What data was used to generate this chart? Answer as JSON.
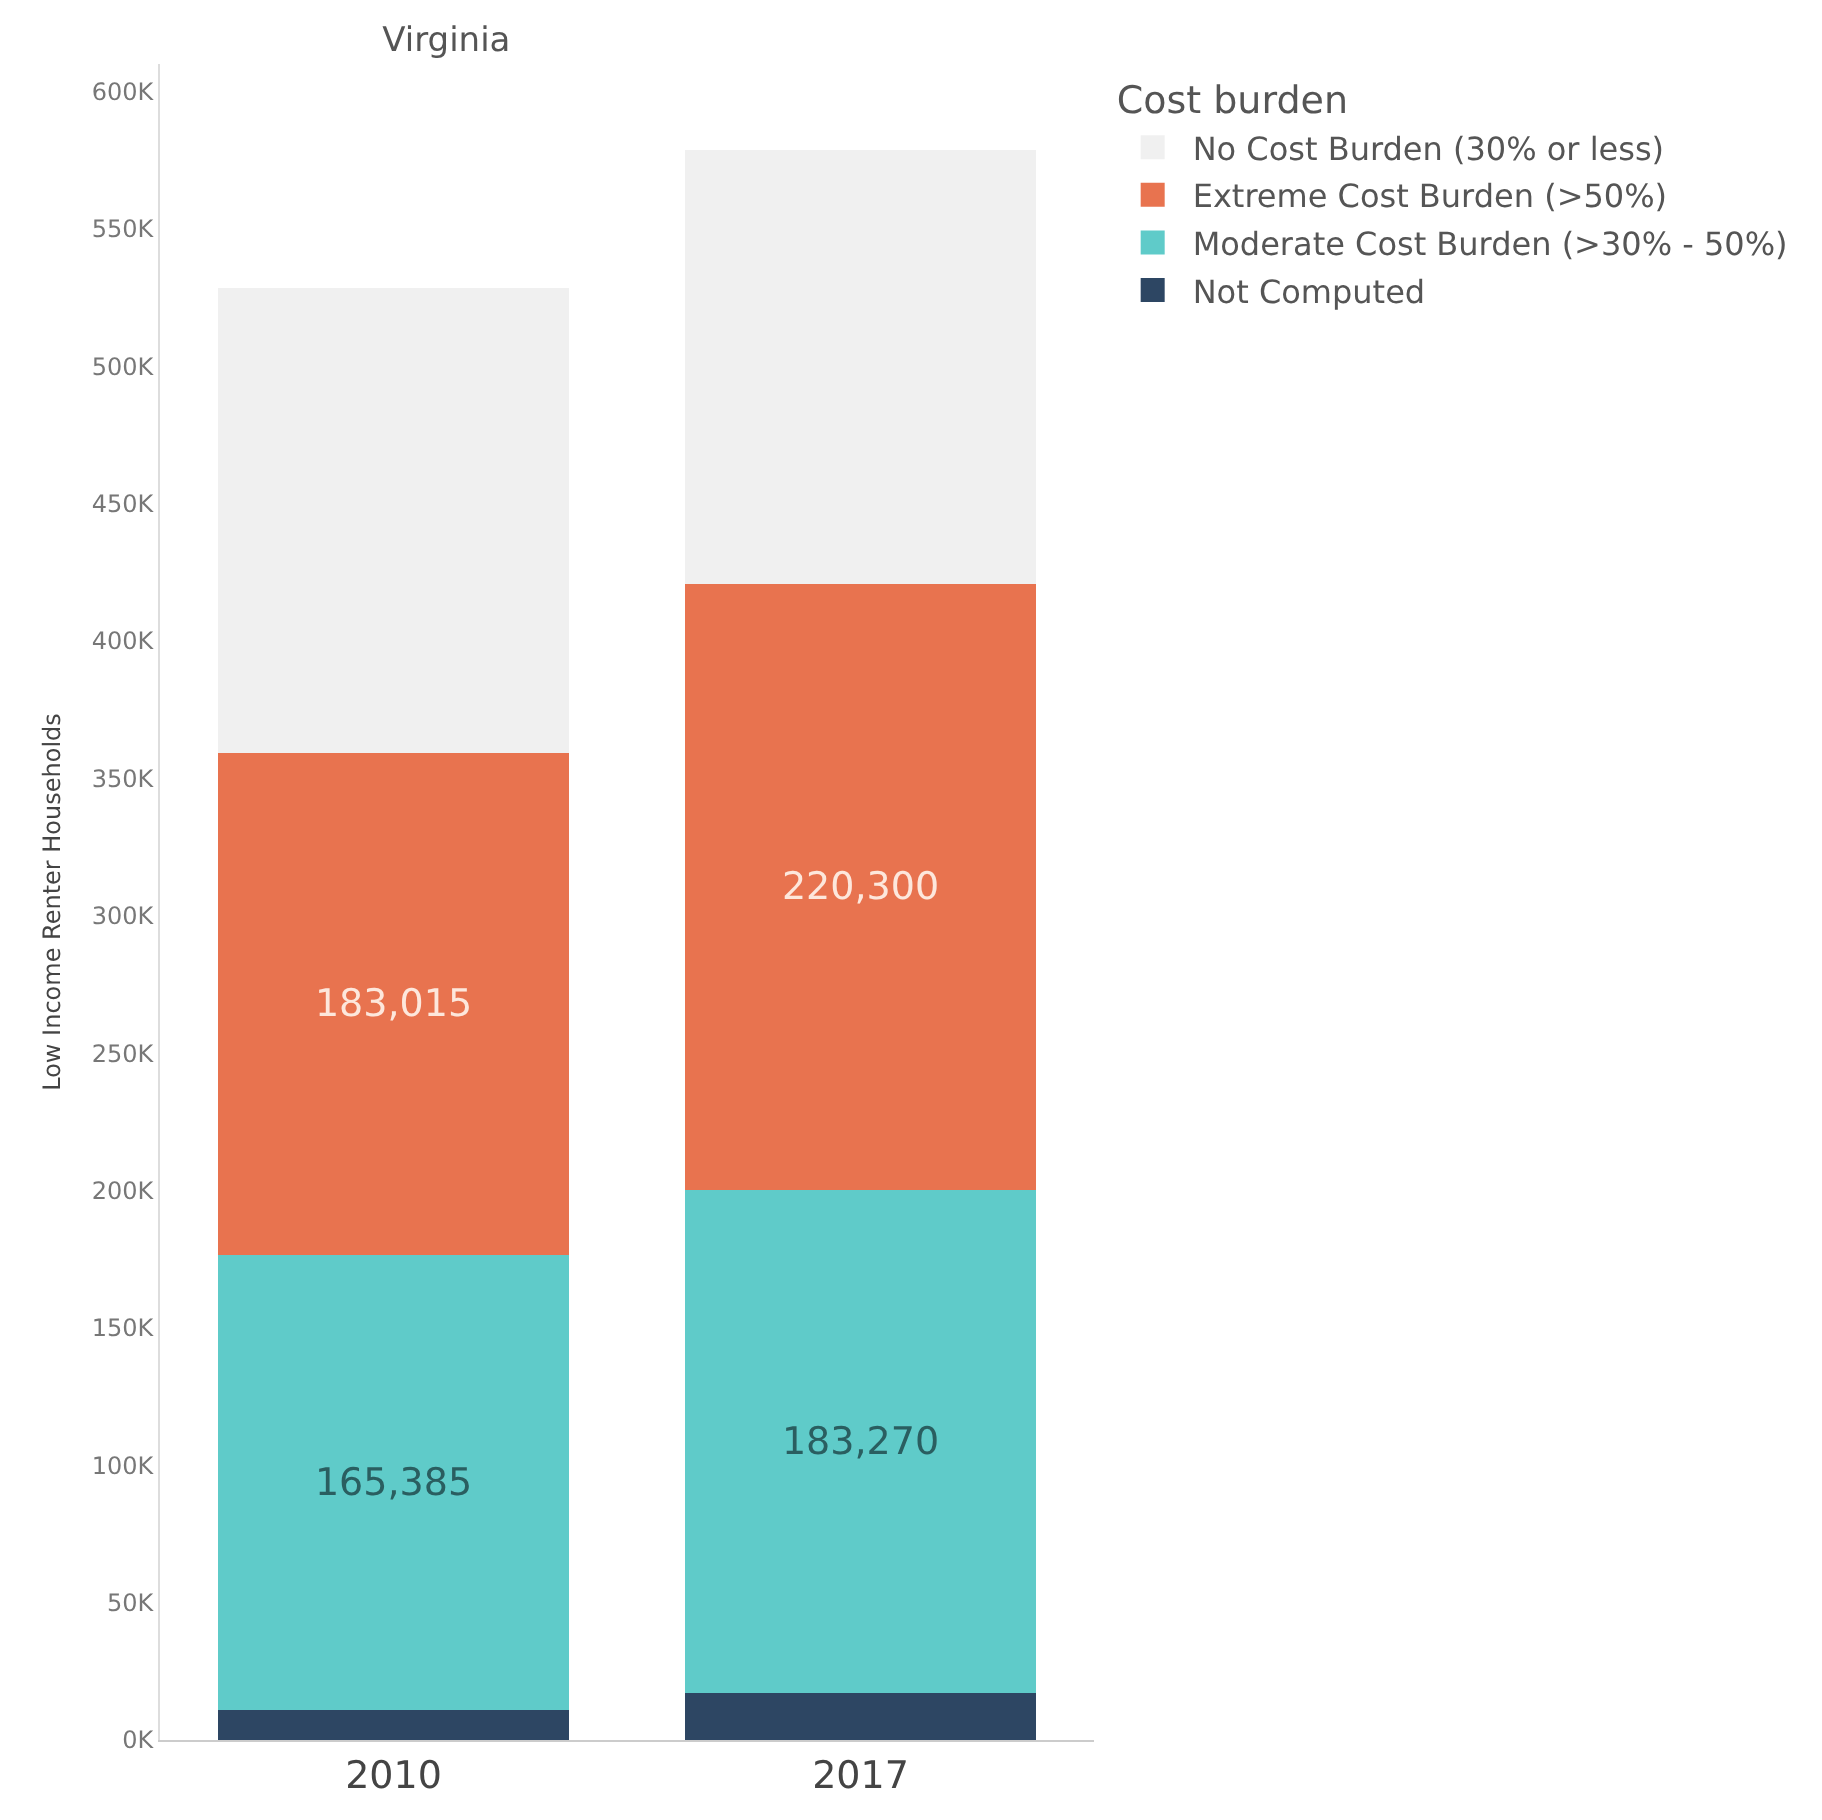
{
  "chart_data": {
    "type": "bar",
    "title": "Virginia",
    "ylabel": "Low Income Renter Households",
    "legend_title": "Cost burden",
    "categories": [
      "2010",
      "2017"
    ],
    "stacked": true,
    "legend": "top right",
    "grid": false,
    "ylim": [
      0,
      610000
    ],
    "yticks": [
      {
        "value": 0,
        "label": "0K"
      },
      {
        "value": 50000,
        "label": "50K"
      },
      {
        "value": 100000,
        "label": "100K"
      },
      {
        "value": 150000,
        "label": "150K"
      },
      {
        "value": 200000,
        "label": "200K"
      },
      {
        "value": 250000,
        "label": "250K"
      },
      {
        "value": 300000,
        "label": "300K"
      },
      {
        "value": 350000,
        "label": "350K"
      },
      {
        "value": 400000,
        "label": "400K"
      },
      {
        "value": 450000,
        "label": "450K"
      },
      {
        "value": 500000,
        "label": "500K"
      },
      {
        "value": 550000,
        "label": "550K"
      },
      {
        "value": 600000,
        "label": "600K"
      }
    ],
    "series": [
      {
        "name": "Not Computed",
        "color": "#2d4663",
        "values": [
          11000,
          17000
        ]
      },
      {
        "name": "Moderate Cost Burden (>30% - 50%)",
        "color": "#5fcbc9",
        "values": [
          165385,
          183270
        ],
        "value_labels": [
          "165,385",
          "183,270"
        ]
      },
      {
        "name": "Extreme Cost Burden (>50%)",
        "color": "#e8734f",
        "values": [
          183015,
          220300
        ],
        "value_labels": [
          "183,015",
          "220,300"
        ]
      },
      {
        "name": "No Cost Burden (30% or less)",
        "color": "#f0f0f0",
        "values": [
          169000,
          158000
        ]
      }
    ]
  }
}
